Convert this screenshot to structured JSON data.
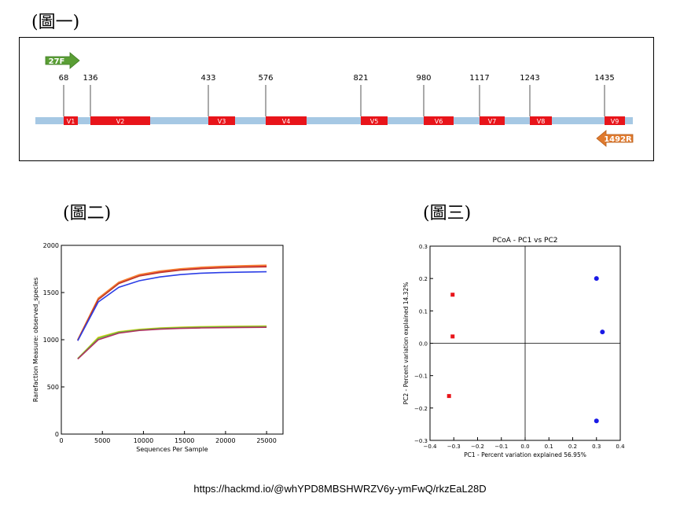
{
  "fig1": {
    "caption": "(圖一)",
    "primers": {
      "forward": "27F",
      "reverse": "1492R"
    },
    "positions": [
      "68",
      "136",
      "433",
      "576",
      "821",
      "980",
      "1117",
      "1243",
      "1435"
    ],
    "regions": [
      "V1",
      "V2",
      "V3",
      "V4",
      "V5",
      "V6",
      "V7",
      "V8",
      "V9"
    ],
    "colors": {
      "backbone": "#a6c8e4",
      "region": "#e8141a",
      "forward_primer": "#5a9e35",
      "reverse_primer": "#e07a2e"
    }
  },
  "fig2": {
    "caption": "(圖二)",
    "chart_data": {
      "type": "line",
      "xlabel": "Sequences Per Sample",
      "ylabel": "Rarefaction Measure: observed_species",
      "xlim": [
        0,
        27000
      ],
      "ylim": [
        0,
        2000
      ],
      "x_ticks": [
        0,
        5000,
        10000,
        15000,
        20000,
        25000
      ],
      "y_ticks": [
        0,
        500,
        1000,
        1500,
        2000
      ],
      "x": [
        2000,
        4500,
        7000,
        9500,
        12000,
        14500,
        17000,
        19500,
        22000,
        25000
      ],
      "series": [
        {
          "color": "#e6194b",
          "values": [
            990,
            1430,
            1600,
            1680,
            1720,
            1745,
            1760,
            1770,
            1775,
            1780
          ]
        },
        {
          "color": "#f58231",
          "values": [
            1000,
            1440,
            1610,
            1690,
            1728,
            1752,
            1768,
            1778,
            1784,
            1790
          ]
        },
        {
          "color": "#c0392b",
          "values": [
            995,
            1425,
            1595,
            1675,
            1712,
            1738,
            1752,
            1762,
            1768,
            1772
          ]
        },
        {
          "color": "#2b3ee6",
          "values": [
            990,
            1400,
            1555,
            1625,
            1665,
            1690,
            1705,
            1712,
            1716,
            1720
          ]
        },
        {
          "color": "#e6d219",
          "values": [
            800,
            1025,
            1085,
            1110,
            1125,
            1133,
            1138,
            1141,
            1143,
            1145
          ]
        },
        {
          "color": "#6bbf3a",
          "values": [
            800,
            1015,
            1080,
            1105,
            1120,
            1128,
            1133,
            1136,
            1138,
            1140
          ]
        },
        {
          "color": "#b03060",
          "values": [
            795,
            1000,
            1070,
            1098,
            1112,
            1120,
            1125,
            1128,
            1130,
            1132
          ]
        }
      ]
    }
  },
  "fig3": {
    "caption": "(圖三)",
    "chart_data": {
      "type": "scatter",
      "title": "PCoA - PC1 vs PC2",
      "xlabel": "PC1 - Percent variation explained 56.95%",
      "ylabel": "PC2 - Percent variation explained 14.32%",
      "xlim": [
        -0.4,
        0.4
      ],
      "ylim": [
        -0.3,
        0.3
      ],
      "x_ticks": [
        "−0.4",
        "−0.3",
        "−0.2",
        "−0.1",
        "0.0",
        "0.1",
        "0.2",
        "0.3",
        "0.4"
      ],
      "x_tick_values": [
        -0.4,
        -0.3,
        -0.2,
        -0.1,
        0.0,
        0.1,
        0.2,
        0.3,
        0.4
      ],
      "y_ticks": [
        "−0.3",
        "−0.2",
        "−0.1",
        "0.0",
        "0.1",
        "0.2",
        "0.3"
      ],
      "y_tick_values": [
        -0.3,
        -0.2,
        -0.1,
        0.0,
        0.1,
        0.2,
        0.3
      ],
      "series": [
        {
          "color": "#e8141a",
          "marker": "square",
          "points": [
            [
              -0.305,
              0.15
            ],
            [
              -0.305,
              0.021
            ],
            [
              -0.32,
              -0.163
            ]
          ]
        },
        {
          "color": "#1a1ae6",
          "marker": "circle",
          "points": [
            [
              0.3,
              0.2
            ],
            [
              0.325,
              0.035
            ],
            [
              0.3,
              -0.24
            ]
          ]
        }
      ]
    }
  },
  "footer": {
    "url": "https://hackmd.io/@whYPD8MBSHWRZV6y-ymFwQ/rkzEaL28D"
  }
}
